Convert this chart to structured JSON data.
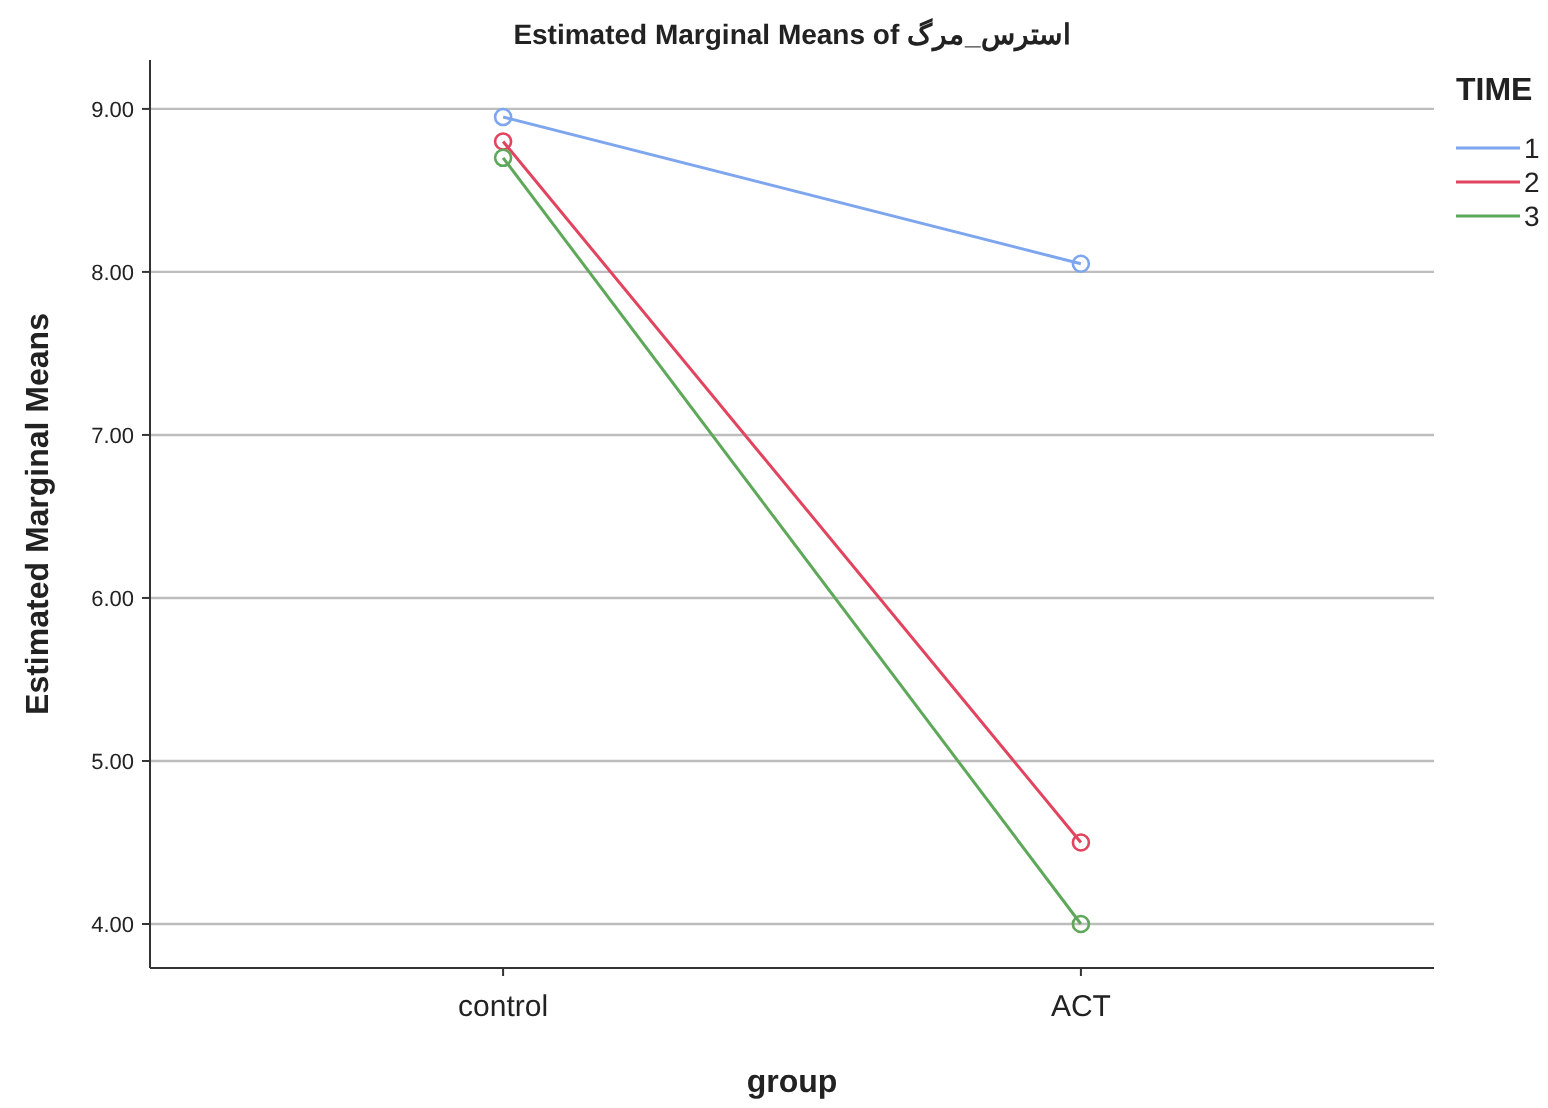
{
  "chart_data": {
    "type": "line",
    "title": "Estimated Marginal Means of استرس_مرگ",
    "xlabel": "group",
    "ylabel": "Estimated Marginal Means",
    "legend_title": "TIME",
    "categories": [
      "control",
      "ACT"
    ],
    "series": [
      {
        "name": "1",
        "color": "#7ea6ef",
        "values": [
          8.95,
          8.05
        ]
      },
      {
        "name": "2",
        "color": "#e2445f",
        "values": [
          8.8,
          4.5
        ]
      },
      {
        "name": "3",
        "color": "#5ea85a",
        "values": [
          8.7,
          4.0
        ]
      }
    ],
    "ylim": [
      3.73,
      9.3
    ],
    "yticks": [
      {
        "value": 4,
        "label": "4.00"
      },
      {
        "value": 5,
        "label": "5.00"
      },
      {
        "value": 6,
        "label": "6.00"
      },
      {
        "value": 7,
        "label": "7.00"
      },
      {
        "value": 8,
        "label": "8.00"
      },
      {
        "value": 9,
        "label": "9.00"
      }
    ],
    "grid": "y",
    "legend": "top right",
    "marker": "circle",
    "line_style": "solid"
  }
}
